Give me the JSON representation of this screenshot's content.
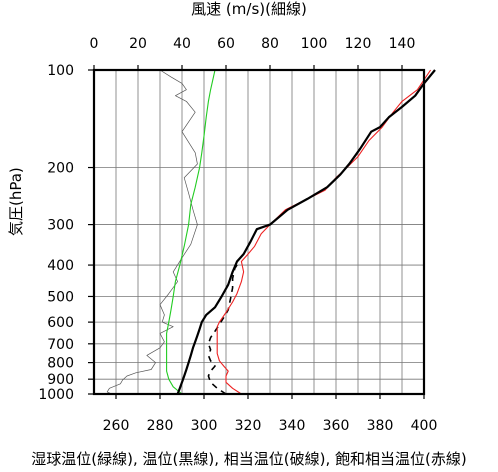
{
  "chart_data": {
    "type": "line",
    "title_top": "風速 (m/s)(細線)",
    "ylabel": "気圧(hPa)",
    "xlabel": "湿球温位(緑線), 温位(黒線), 相当温位(破線), 飽和相当温位(赤線)",
    "x_bottom": {
      "lim": [
        250,
        400
      ],
      "ticks": [
        260,
        280,
        300,
        320,
        340,
        360,
        380,
        400
      ]
    },
    "x_top": {
      "lim": [
        0,
        150
      ],
      "ticks": [
        0,
        20,
        40,
        60,
        80,
        100,
        120,
        140
      ]
    },
    "y": {
      "scale": "log",
      "lim": [
        1000,
        100
      ],
      "ticks": [
        100,
        200,
        300,
        400,
        500,
        600,
        700,
        800,
        900,
        1000
      ]
    },
    "grid": true,
    "series": [
      {
        "key": "wind_speed",
        "axis": "top",
        "color": "#555555",
        "style": "thin",
        "points": [
          [
            8,
            1000
          ],
          [
            6,
            985
          ],
          [
            7,
            960
          ],
          [
            12,
            930
          ],
          [
            13,
            905
          ],
          [
            15,
            880
          ],
          [
            19,
            860
          ],
          [
            26,
            840
          ],
          [
            28,
            800
          ],
          [
            24,
            760
          ],
          [
            30,
            720
          ],
          [
            32,
            690
          ],
          [
            30,
            650
          ],
          [
            36,
            620
          ],
          [
            31,
            600
          ],
          [
            32,
            570
          ],
          [
            30,
            530
          ],
          [
            34,
            490
          ],
          [
            38,
            450
          ],
          [
            36,
            420
          ],
          [
            40,
            380
          ],
          [
            44,
            345
          ],
          [
            47,
            300
          ],
          [
            45,
            270
          ],
          [
            43,
            240
          ],
          [
            41,
            215
          ],
          [
            47,
            195
          ],
          [
            46,
            180
          ],
          [
            40,
            155
          ],
          [
            46,
            135
          ],
          [
            42,
            125
          ],
          [
            37,
            120
          ],
          [
            42,
            115
          ],
          [
            40,
            110
          ],
          [
            35,
            105
          ],
          [
            30,
            100
          ]
        ]
      },
      {
        "key": "wet_bulb_potential_temperature",
        "axis": "bottom",
        "color": "#22cc22",
        "style": "solid",
        "points": [
          [
            290,
            1000
          ],
          [
            286,
            950
          ],
          [
            284,
            900
          ],
          [
            283,
            850
          ],
          [
            283,
            800
          ],
          [
            283,
            750
          ],
          [
            283,
            700
          ],
          [
            283,
            650
          ],
          [
            284,
            600
          ],
          [
            285,
            550
          ],
          [
            286,
            500
          ],
          [
            287,
            450
          ],
          [
            289,
            400
          ],
          [
            291,
            350
          ],
          [
            293,
            300
          ],
          [
            294,
            260
          ],
          [
            296,
            230
          ],
          [
            298,
            200
          ],
          [
            299,
            180
          ],
          [
            300,
            160
          ],
          [
            301,
            140
          ],
          [
            302,
            125
          ],
          [
            303,
            115
          ],
          [
            305,
            100
          ]
        ]
      },
      {
        "key": "equivalent_potential_temperature",
        "axis": "bottom",
        "color": "#000000",
        "style": "dashed",
        "points": [
          [
            310,
            1000
          ],
          [
            306,
            960
          ],
          [
            303,
            920
          ],
          [
            302,
            880
          ],
          [
            303,
            850
          ],
          [
            305,
            820
          ],
          [
            303,
            790
          ],
          [
            302,
            760
          ],
          [
            303,
            730
          ],
          [
            302,
            700
          ],
          [
            303,
            670
          ],
          [
            305,
            640
          ],
          [
            307,
            610
          ],
          [
            309,
            580
          ],
          [
            311,
            550
          ],
          [
            312,
            510
          ],
          [
            313,
            470
          ],
          [
            313,
            440
          ],
          [
            314,
            410
          ],
          [
            316,
            390
          ]
        ]
      },
      {
        "key": "saturated_equivalent_potential_temperature",
        "axis": "bottom",
        "color": "#ee2222",
        "style": "solid",
        "points": [
          [
            317,
            1000
          ],
          [
            313,
            960
          ],
          [
            310,
            920
          ],
          [
            310,
            880
          ],
          [
            311,
            850
          ],
          [
            309,
            820
          ],
          [
            307,
            790
          ],
          [
            306,
            750
          ],
          [
            306,
            700
          ],
          [
            306,
            650
          ],
          [
            306,
            620
          ],
          [
            307,
            600
          ],
          [
            310,
            560
          ],
          [
            313,
            520
          ],
          [
            315,
            490
          ],
          [
            317,
            450
          ],
          [
            318,
            420
          ],
          [
            317,
            390
          ],
          [
            320,
            370
          ],
          [
            323,
            350
          ],
          [
            326,
            320
          ],
          [
            330,
            300
          ],
          [
            337,
            270
          ],
          [
            347,
            250
          ],
          [
            355,
            235
          ],
          [
            360,
            215
          ],
          [
            365,
            200
          ],
          [
            370,
            185
          ],
          [
            375,
            165
          ],
          [
            381,
            150
          ],
          [
            386,
            135
          ],
          [
            390,
            125
          ],
          [
            397,
            115
          ],
          [
            403,
            100
          ]
        ]
      },
      {
        "key": "potential_temperature",
        "axis": "bottom",
        "color": "#000000",
        "style": "thick",
        "points": [
          [
            288,
            1000
          ],
          [
            289,
            960
          ],
          [
            290,
            920
          ],
          [
            291,
            880
          ],
          [
            292,
            840
          ],
          [
            293,
            800
          ],
          [
            294,
            760
          ],
          [
            295,
            720
          ],
          [
            296,
            690
          ],
          [
            297,
            660
          ],
          [
            298,
            630
          ],
          [
            299,
            600
          ],
          [
            301,
            570
          ],
          [
            305,
            540
          ],
          [
            308,
            500
          ],
          [
            311,
            460
          ],
          [
            313,
            420
          ],
          [
            315,
            390
          ],
          [
            318,
            370
          ],
          [
            321,
            340
          ],
          [
            324,
            310
          ],
          [
            330,
            300
          ],
          [
            338,
            270
          ],
          [
            347,
            250
          ],
          [
            356,
            230
          ],
          [
            362,
            210
          ],
          [
            366,
            195
          ],
          [
            371,
            175
          ],
          [
            376,
            155
          ],
          [
            380,
            150
          ],
          [
            384,
            140
          ],
          [
            390,
            130
          ],
          [
            396,
            120
          ],
          [
            400,
            110
          ],
          [
            405,
            100
          ]
        ]
      }
    ]
  }
}
